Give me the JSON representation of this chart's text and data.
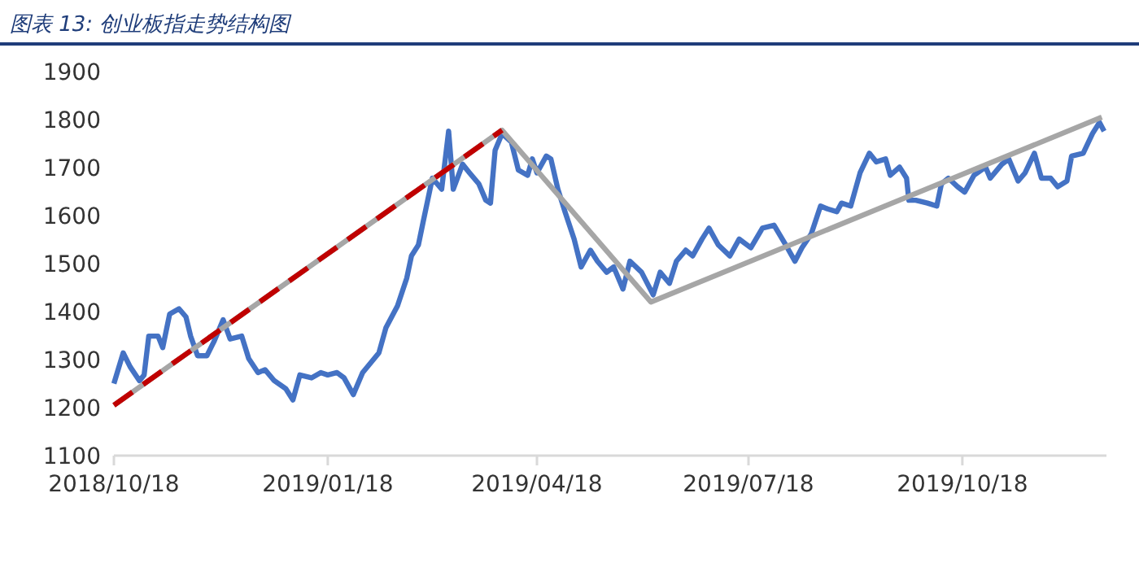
{
  "chart_data": {
    "type": "line",
    "title": "图表 13: 创业板指走势结构图",
    "xlim": [
      "2018-10-18",
      "2019-12-19"
    ],
    "xticks": [
      {
        "value": "2018-10-18",
        "label": "2018/10/18"
      },
      {
        "value": "2019-01-18",
        "label": "2019/01/18"
      },
      {
        "value": "2019-04-18",
        "label": "2019/04/18"
      },
      {
        "value": "2019-07-18",
        "label": "2019/07/18"
      },
      {
        "value": "2019-10-18",
        "label": "2019/10/18"
      }
    ],
    "ylim": [
      1100,
      1900
    ],
    "yticks": [
      1100,
      1200,
      1300,
      1400,
      1500,
      1600,
      1700,
      1800,
      1900
    ],
    "marker": "none",
    "series": [
      {
        "color": "#4472c4",
        "line_style": "solid",
        "x": [
          "2018-10-18",
          "2018-10-22",
          "2018-10-25",
          "2018-10-29",
          "2018-10-31",
          "2018-11-02",
          "2018-11-06",
          "2018-11-08",
          "2018-11-11",
          "2018-11-15",
          "2018-11-18",
          "2018-11-20",
          "2018-11-23",
          "2018-11-27",
          "2018-11-30",
          "2018-12-04",
          "2018-12-07",
          "2018-12-12",
          "2018-12-15",
          "2018-12-19",
          "2018-12-22",
          "2018-12-26",
          "2018-12-31",
          "2019-01-03",
          "2019-01-06",
          "2019-01-11",
          "2019-01-15",
          "2019-01-18",
          "2019-01-22",
          "2019-01-25",
          "2019-01-29",
          "2019-02-02",
          "2019-02-09",
          "2019-02-12",
          "2019-02-17",
          "2019-02-21",
          "2019-02-23",
          "2019-02-26",
          "2019-02-28",
          "2019-03-04",
          "2019-03-08",
          "2019-03-11",
          "2019-03-13",
          "2019-03-17",
          "2019-03-20",
          "2019-03-24",
          "2019-03-27",
          "2019-03-29",
          "2019-03-31",
          "2019-04-03",
          "2019-04-07",
          "2019-04-10",
          "2019-04-14",
          "2019-04-16",
          "2019-04-18",
          "2019-04-22",
          "2019-04-24",
          "2019-04-27",
          "2019-04-30",
          "2019-05-04",
          "2019-05-07",
          "2019-05-11",
          "2019-05-14",
          "2019-05-18",
          "2019-05-21",
          "2019-05-25",
          "2019-05-28",
          "2019-06-02",
          "2019-06-07",
          "2019-06-10",
          "2019-06-14",
          "2019-06-17",
          "2019-06-21",
          "2019-06-24",
          "2019-06-28",
          "2019-07-01",
          "2019-07-05",
          "2019-07-10",
          "2019-07-14",
          "2019-07-19",
          "2019-07-24",
          "2019-07-29",
          "2019-08-03",
          "2019-08-07",
          "2019-08-10",
          "2019-08-14",
          "2019-08-18",
          "2019-08-21",
          "2019-08-25",
          "2019-08-27",
          "2019-08-31",
          "2019-09-04",
          "2019-09-08",
          "2019-09-11",
          "2019-09-15",
          "2019-09-17",
          "2019-09-21",
          "2019-09-24",
          "2019-09-25",
          "2019-09-28",
          "2019-10-03",
          "2019-10-07",
          "2019-10-09",
          "2019-10-12",
          "2019-10-16",
          "2019-10-19",
          "2019-10-23",
          "2019-10-28",
          "2019-10-30",
          "2019-11-04",
          "2019-11-07",
          "2019-11-11",
          "2019-11-14",
          "2019-11-18",
          "2019-11-21",
          "2019-11-25",
          "2019-11-28",
          "2019-12-02",
          "2019-12-04",
          "2019-12-09",
          "2019-12-13",
          "2019-12-16",
          "2019-12-18"
        ],
        "values": [
          1250,
          1314,
          1285,
          1256,
          1268,
          1349,
          1349,
          1325,
          1395,
          1406,
          1389,
          1349,
          1308,
          1308,
          1337,
          1383,
          1343,
          1349,
          1302,
          1273,
          1279,
          1256,
          1239,
          1216,
          1268,
          1262,
          1273,
          1268,
          1273,
          1262,
          1227,
          1273,
          1314,
          1366,
          1412,
          1470,
          1516,
          1539,
          1586,
          1678,
          1655,
          1776,
          1655,
          1707,
          1689,
          1666,
          1632,
          1626,
          1736,
          1771,
          1753,
          1695,
          1684,
          1718,
          1689,
          1724,
          1718,
          1655,
          1609,
          1551,
          1493,
          1528,
          1505,
          1482,
          1493,
          1447,
          1505,
          1482,
          1435,
          1482,
          1459,
          1505,
          1528,
          1516,
          1551,
          1574,
          1539,
          1516,
          1551,
          1533,
          1574,
          1580,
          1539,
          1505,
          1533,
          1562,
          1620,
          1614,
          1608,
          1626,
          1620,
          1689,
          1730,
          1712,
          1718,
          1684,
          1701,
          1678,
          1632,
          1632,
          1626,
          1620,
          1666,
          1678,
          1660,
          1649,
          1684,
          1701,
          1678,
          1707,
          1718,
          1672,
          1689,
          1730,
          1678,
          1678,
          1660,
          1672,
          1724,
          1730,
          1771,
          1794,
          1776
        ]
      },
      {
        "color": "#a6a6a6",
        "line_style": "solid",
        "x": [
          "2018-10-18",
          "2019-04-03",
          "2019-06-06",
          "2019-12-17"
        ],
        "values": [
          1205,
          1778,
          1420,
          1805
        ]
      },
      {
        "color": "#c00000",
        "line_style": "dashed",
        "x": [
          "2018-10-18",
          "2019-04-03"
        ],
        "values": [
          1205,
          1778
        ]
      }
    ]
  }
}
